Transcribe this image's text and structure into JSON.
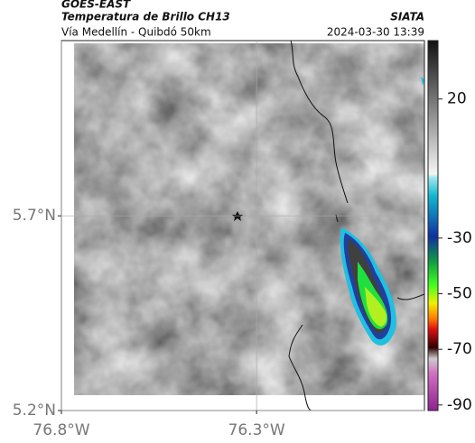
{
  "header": {
    "satellite": "GOES-EAST",
    "product": "Temperatura de Brillo CH13",
    "organization": "SIATA",
    "region": "Vía Medellín - Quibdó 50km",
    "timestamp": "2024-03-30 13:39"
  },
  "map": {
    "latlim": [
      5.2,
      6.15
    ],
    "lonlim": [
      -76.8,
      -75.87
    ],
    "lat_ticks": [
      {
        "value": 5.2,
        "label": "5.2°N"
      },
      {
        "value": 5.7,
        "label": "5.7°N"
      }
    ],
    "lon_ticks": [
      {
        "value": -76.8,
        "label": "76.8°W"
      },
      {
        "value": -76.3,
        "label": "76.3°W"
      }
    ]
  },
  "colorbar": {
    "lim": [
      41,
      -92
    ],
    "ticks": [
      20,
      -30,
      -50,
      -70,
      -90
    ]
  }
}
